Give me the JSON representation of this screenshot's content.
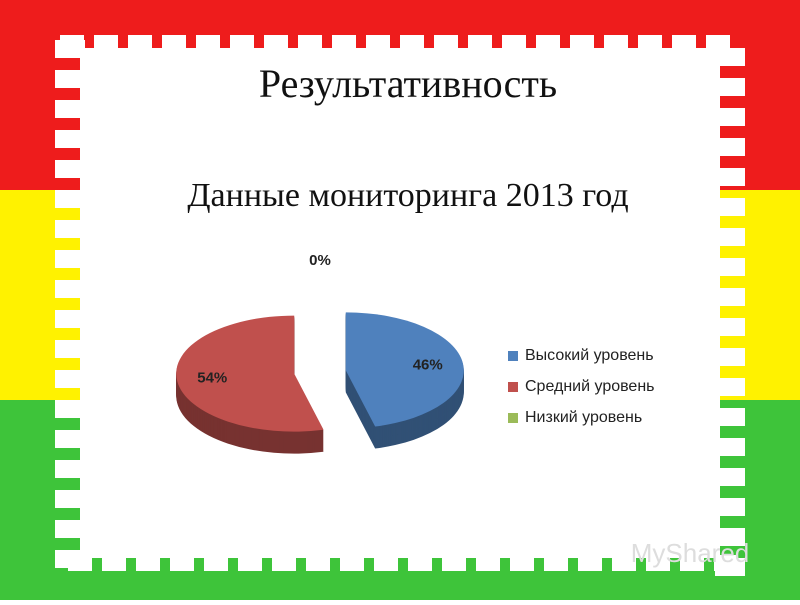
{
  "chart_data": {
    "type": "pie",
    "title": "Результативность",
    "subtitle": "Данные мониторинга 2013 год",
    "categories": [
      "Высокий уровень",
      "Средний уровень",
      "Низкий уровень"
    ],
    "values": [
      46,
      54,
      0
    ],
    "value_labels": [
      "46%",
      "54%",
      "0%"
    ],
    "colors": [
      "#4f81bd",
      "#c0504d",
      "#9bbb59"
    ],
    "legend": "right"
  },
  "watermark": "MyShared"
}
